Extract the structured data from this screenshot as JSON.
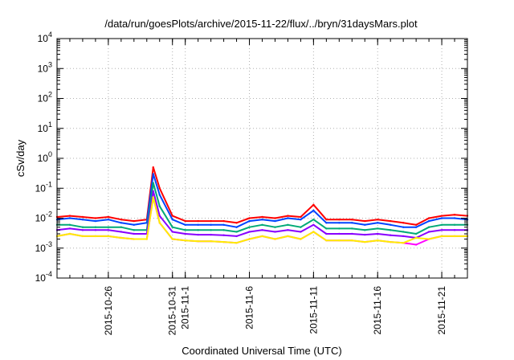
{
  "chart_data": {
    "type": "line",
    "title": "/data/run/goesPlots/archive/2015-11-22/flux/../bryn/31daysMars.plot",
    "xlabel": "Coordinated Universal Time (UTC)",
    "ylabel": "cSv/day",
    "yscale": "log",
    "ylim": [
      0.0001,
      10000
    ],
    "xlim": [
      "2015-10-22",
      "2015-11-23"
    ],
    "grid": true,
    "legend": "none",
    "x_ticks": [
      {
        "date": "2015-10-26",
        "label": "2015-10-26"
      },
      {
        "date": "2015-10-31",
        "label": "2015-10-31"
      },
      {
        "date": "2015-11-01",
        "label": "2015-11-1"
      },
      {
        "date": "2015-11-06",
        "label": "2015-11-6"
      },
      {
        "date": "2015-11-11",
        "label": "2015-11-11"
      },
      {
        "date": "2015-11-16",
        "label": "2015-11-16"
      },
      {
        "date": "2015-11-21",
        "label": "2015-11-21"
      }
    ],
    "y_ticks": [
      {
        "value": 0.0001,
        "base": "10",
        "exp": "-4"
      },
      {
        "value": 0.001,
        "base": "10",
        "exp": "-3"
      },
      {
        "value": 0.01,
        "base": "10",
        "exp": "-2"
      },
      {
        "value": 0.1,
        "base": "10",
        "exp": "-1"
      },
      {
        "value": 1,
        "base": "10",
        "exp": "0"
      },
      {
        "value": 10,
        "base": "10",
        "exp": "1"
      },
      {
        "value": 100,
        "base": "10",
        "exp": "2"
      },
      {
        "value": 1000,
        "base": "10",
        "exp": "3"
      },
      {
        "value": 10000,
        "base": "10",
        "exp": "4"
      }
    ],
    "x": [
      "2015-10-22",
      "2015-10-23",
      "2015-10-24",
      "2015-10-25",
      "2015-10-26",
      "2015-10-27",
      "2015-10-28",
      "2015-10-29",
      "2015-10-29T12:00",
      "2015-10-30",
      "2015-10-31",
      "2015-11-01",
      "2015-11-02",
      "2015-11-03",
      "2015-11-04",
      "2015-11-05",
      "2015-11-06",
      "2015-11-07",
      "2015-11-08",
      "2015-11-09",
      "2015-11-10",
      "2015-11-11",
      "2015-11-12",
      "2015-11-13",
      "2015-11-14",
      "2015-11-15",
      "2015-11-16",
      "2015-11-17",
      "2015-11-18",
      "2015-11-19",
      "2015-11-20",
      "2015-11-21",
      "2015-11-22",
      "2015-11-23"
    ],
    "series": [
      {
        "color": "#ff0000",
        "values": [
          0.011,
          0.012,
          0.011,
          0.01,
          0.011,
          0.009,
          0.008,
          0.009,
          0.5,
          0.1,
          0.012,
          0.008,
          0.008,
          0.008,
          0.008,
          0.007,
          0.01,
          0.011,
          0.01,
          0.012,
          0.011,
          0.028,
          0.009,
          0.009,
          0.009,
          0.008,
          0.009,
          0.008,
          0.007,
          0.006,
          0.01,
          0.012,
          0.013,
          0.012
        ]
      },
      {
        "color": "#0044ff",
        "values": [
          0.009,
          0.01,
          0.009,
          0.008,
          0.009,
          0.007,
          0.006,
          0.007,
          0.3,
          0.06,
          0.009,
          0.006,
          0.006,
          0.006,
          0.006,
          0.005,
          0.008,
          0.009,
          0.008,
          0.01,
          0.009,
          0.018,
          0.007,
          0.007,
          0.007,
          0.006,
          0.007,
          0.006,
          0.005,
          0.005,
          0.008,
          0.01,
          0.01,
          0.009
        ]
      },
      {
        "color": "#00aa77",
        "values": [
          0.006,
          0.006,
          0.005,
          0.005,
          0.005,
          0.005,
          0.004,
          0.004,
          0.15,
          0.025,
          0.005,
          0.004,
          0.004,
          0.004,
          0.004,
          0.0035,
          0.005,
          0.006,
          0.005,
          0.006,
          0.005,
          0.009,
          0.0045,
          0.0045,
          0.0045,
          0.004,
          0.0045,
          0.004,
          0.0035,
          0.003,
          0.005,
          0.006,
          0.006,
          0.006
        ]
      },
      {
        "color": "#8800ff",
        "values": [
          0.004,
          0.0045,
          0.004,
          0.004,
          0.004,
          0.0035,
          0.003,
          0.003,
          0.08,
          0.012,
          0.0035,
          0.003,
          0.0028,
          0.0028,
          0.0027,
          0.0025,
          0.0035,
          0.004,
          0.0035,
          0.004,
          0.0035,
          0.006,
          0.003,
          0.003,
          0.003,
          0.0028,
          0.003,
          0.0027,
          0.0025,
          0.0022,
          0.0035,
          0.004,
          0.004,
          0.004
        ]
      },
      {
        "color": "#ff00ff",
        "values": [
          0.0025,
          0.003,
          0.0025,
          0.0025,
          0.0025,
          0.0022,
          0.002,
          0.002,
          0.05,
          0.007,
          0.002,
          0.0018,
          0.0017,
          0.0017,
          0.0016,
          0.0015,
          0.002,
          0.0025,
          0.002,
          0.0025,
          0.002,
          0.0035,
          0.0018,
          0.0018,
          0.0018,
          0.0016,
          0.0018,
          0.0016,
          0.0015,
          0.0013,
          0.002,
          0.0025,
          0.0025,
          0.0025
        ]
      },
      {
        "color": "#ffee00",
        "values": [
          0.0025,
          0.003,
          0.0025,
          0.0025,
          0.0025,
          0.0022,
          0.002,
          0.002,
          0.05,
          0.007,
          0.002,
          0.0018,
          0.0017,
          0.0017,
          0.0016,
          0.0015,
          0.002,
          0.0025,
          0.002,
          0.0025,
          0.002,
          0.0035,
          0.0018,
          0.0018,
          0.0018,
          0.0016,
          0.0018,
          0.0016,
          0.0015,
          0.0022,
          0.002,
          0.0025,
          0.0025,
          0.0025
        ]
      }
    ]
  }
}
